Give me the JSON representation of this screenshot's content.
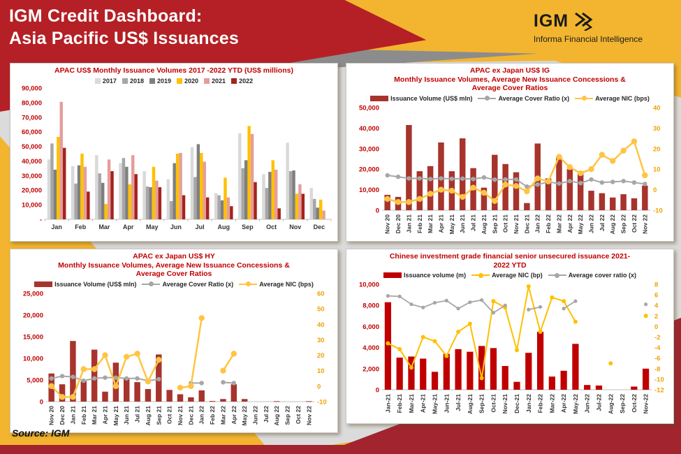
{
  "header": {
    "title_line1": "IGM Credit Dashboard:",
    "title_line2": "Asia Pacific US$ Issuances",
    "logo_text": "IGM",
    "logo_tagline": "Informa Financial Intelligence"
  },
  "source_label": "Source: IGM",
  "colors": {
    "header_red": "#B42025",
    "page_yellow": "#F3B52F",
    "bottom_red": "#A2242F",
    "gray_dark": "#8C8C8C",
    "gray_light": "#DBDBDB",
    "chart_title_red": "#C00000",
    "left_axis_red": "#C00000",
    "right_axis_orange": "#F0A202"
  },
  "chart_data": [
    {
      "id": "apac",
      "type": "bar",
      "title_lines": [
        "APAC US$ Monthly Issuance Volumes 2017 -2022 YTD (US$ millions)"
      ],
      "categories": [
        "Jan",
        "Feb",
        "Mar",
        "Apr",
        "May",
        "Jun",
        "Jul",
        "Aug",
        "Sep",
        "Oct",
        "Nov",
        "Dec"
      ],
      "series": [
        {
          "name": "2017",
          "type": "bar",
          "axis": "left",
          "color": "#D9D9D9",
          "values": [
            41000,
            36500,
            44000,
            38500,
            33000,
            27500,
            49500,
            18000,
            59000,
            31000,
            52500,
            21500
          ]
        },
        {
          "name": "2018",
          "type": "bar",
          "axis": "left",
          "color": "#A6A6A6",
          "values": [
            52000,
            24500,
            31500,
            42000,
            22500,
            12500,
            29000,
            16500,
            35000,
            21500,
            33000,
            14000
          ]
        },
        {
          "name": "2019",
          "type": "bar",
          "axis": "left",
          "color": "#7F7F7F",
          "values": [
            34000,
            37000,
            25000,
            36000,
            22000,
            38500,
            51500,
            13000,
            40500,
            32500,
            33500,
            8000
          ]
        },
        {
          "name": "2020",
          "type": "bar",
          "axis": "left",
          "color": "#FFC000",
          "values": [
            56500,
            45000,
            10500,
            24000,
            36000,
            45000,
            45500,
            28500,
            64000,
            40500,
            17500,
            13500
          ]
        },
        {
          "name": "2021",
          "type": "bar",
          "axis": "left",
          "color": "#E59D9B",
          "values": [
            80500,
            36000,
            41000,
            44000,
            26500,
            45500,
            39500,
            15000,
            58500,
            34000,
            24000,
            6000
          ]
        },
        {
          "name": "2022",
          "type": "bar",
          "axis": "left",
          "color": "#A5231D",
          "values": [
            49000,
            19000,
            33000,
            31000,
            22000,
            16500,
            15000,
            9000,
            25500,
            7500,
            17500,
            null
          ]
        }
      ],
      "left_axis": {
        "min": 0,
        "max": 90000,
        "step": 10000,
        "zero_dash": true
      },
      "right_axis": null,
      "grid": false,
      "legend_position": "top"
    },
    {
      "id": "ig",
      "type": "bar-line",
      "title_lines": [
        "APAC ex Japan US$ IG",
        "Monthly Issuance Volumes, Average New Issuance Concessions &",
        "Average Cover Ratios"
      ],
      "categories": [
        "Nov 20",
        "Dec 20",
        "Jan 21",
        "Feb 21",
        "Mar 21",
        "Apr 21",
        "May 21",
        "Jun 21",
        "Jul 21",
        "Aug 21",
        "Sep 21",
        "Oct 21",
        "Nov 21",
        "Dec 21",
        "Jan 22",
        "Feb 22",
        "Mar 22",
        "Apr 22",
        "May 22",
        "Jun 22",
        "Jul 22",
        "Aug 22",
        "Sep 22",
        "Oct 22",
        "Nov 22"
      ],
      "series": [
        {
          "name": "Issuance Volume (US$ mln)",
          "type": "bar",
          "axis": "left",
          "color": "#A6342D",
          "values": [
            7500,
            6500,
            41500,
            19000,
            21500,
            33000,
            19000,
            35000,
            20500,
            11000,
            27000,
            22500,
            18500,
            3500,
            32500,
            15500,
            26000,
            20000,
            19000,
            9500,
            8300,
            6200,
            7800,
            5800,
            12000
          ]
        },
        {
          "name": "Average Cover Ratio (x)",
          "type": "line",
          "axis": "right",
          "color": "#A6A6A6",
          "lw": 2,
          "r": 3.2,
          "values": [
            7,
            6.3,
            5.5,
            5.5,
            5.2,
            5.5,
            5.3,
            5.4,
            5.2,
            6,
            4.9,
            5,
            5,
            1.5,
            2.5,
            3.8,
            3,
            4.2,
            3.2,
            5,
            3.5,
            3.8,
            4.2,
            3.5,
            2.8
          ]
        },
        {
          "name": "Average NIC (bps)",
          "type": "line",
          "axis": "right",
          "color": "#FFC444",
          "lw": 2.5,
          "r": 4.2,
          "values": [
            -4.5,
            -6,
            -6,
            -4.5,
            -2,
            0,
            -0.5,
            -3.5,
            1,
            -1.5,
            -5.5,
            2.5,
            1.8,
            -0.8,
            5.5,
            4,
            16,
            11,
            8,
            10,
            17,
            14,
            19,
            23.5,
            7
          ]
        }
      ],
      "left_axis": {
        "min": 0,
        "max": 50000,
        "step": 10000,
        "zero_dash": false
      },
      "right_axis": {
        "min": -10,
        "max": 40,
        "step": 10
      },
      "grid": false,
      "legend_position": "top"
    },
    {
      "id": "hy",
      "type": "bar-line",
      "title_lines": [
        "APAC ex Japan US$ HY",
        "Monthly Issuance Volumes, Average New Issuance Concessions &",
        "Average Cover Ratios"
      ],
      "categories": [
        "Nov 20",
        "Dec 20",
        "Jan 21",
        "Feb 21",
        "Mar 21",
        "Apr 21",
        "May 21",
        "Jun 21",
        "Jul 21",
        "Aug 21",
        "Sep 21",
        "Oct 21",
        "Nov 21",
        "Dec 21",
        "Jan 22",
        "Feb 22",
        "Mar 22",
        "Apr 22",
        "May 22",
        "Jun 22",
        "Jul 22",
        "Aug 22",
        "Sep 22",
        "Oct 22",
        "Nov 22"
      ],
      "series": [
        {
          "name": "Issuance Volume (US$ mln)",
          "type": "bar",
          "axis": "left",
          "color": "#A6342D",
          "values": [
            6500,
            4000,
            14000,
            4700,
            12000,
            2300,
            9000,
            5300,
            4500,
            2900,
            10900,
            2700,
            1700,
            1000,
            2600,
            150,
            600,
            4000,
            600,
            null,
            null,
            100,
            null,
            null,
            100
          ]
        },
        {
          "name": "Average Cover Ratio (x)",
          "type": "line",
          "axis": "right",
          "color": "#A6A6A6",
          "lw": 2,
          "r": 3.2,
          "values": [
            5,
            6.5,
            6,
            3.5,
            5,
            5.5,
            5.5,
            5,
            5,
            3.5,
            4.5,
            null,
            null,
            2,
            2,
            null,
            2.5,
            2,
            null,
            null,
            null,
            null,
            null,
            null,
            null
          ]
        },
        {
          "name": "Average NIC (bps)",
          "type": "line",
          "axis": "right",
          "color": "#FFC444",
          "lw": 2.5,
          "r": 4.2,
          "values": [
            0,
            -7,
            -7,
            11,
            11,
            20,
            0,
            19,
            21,
            3,
            17,
            null,
            -1,
            0,
            44,
            null,
            10,
            21,
            null,
            null,
            null,
            null,
            null,
            null,
            null
          ]
        }
      ],
      "left_axis": {
        "min": 0,
        "max": 25000,
        "step": 5000,
        "zero_dash": false
      },
      "right_axis": {
        "min": -10,
        "max": 60,
        "step": 10
      },
      "grid": false,
      "legend_position": "top"
    },
    {
      "id": "cn",
      "type": "bar-line",
      "title_lines": [
        "Chinese investment grade financial senior unsecured issuance 2021-",
        "2022 YTD"
      ],
      "categories": [
        "Jan-21",
        "Feb-21",
        "Mar-21",
        "Apr-21",
        "May-21",
        "Jun-21",
        "Jul-21",
        "Aug-21",
        "Sep-21",
        "Oct-21",
        "Nov-21",
        "Dec-21",
        "Jan-22",
        "Feb-22",
        "Mar-22",
        "Apr-22",
        "May-22",
        "Jun-22",
        "Jul-22",
        "Aug-22",
        "Sep-22",
        "Oct-22",
        "Nov-22"
      ],
      "series": [
        {
          "name": "Issuance volume (m)",
          "type": "bar",
          "axis": "left",
          "color": "#C00000",
          "values": [
            8300,
            3050,
            3150,
            2950,
            1700,
            3400,
            3850,
            3600,
            4150,
            3950,
            2250,
            750,
            3500,
            5500,
            1250,
            1800,
            4350,
            450,
            400,
            null,
            null,
            300,
            2000
          ]
        },
        {
          "name": "Average NIC (bp)",
          "type": "line",
          "axis": "right",
          "color": "#FFC000",
          "lw": 2,
          "r": 3,
          "values": [
            -3.2,
            -4.3,
            -7.8,
            -2,
            -2.8,
            -5.6,
            -1,
            0.5,
            -9.8,
            4.8,
            3.6,
            -4.5,
            7.6,
            -1,
            5.5,
            4.8,
            0.9,
            null,
            null,
            -7,
            null,
            null,
            2
          ]
        },
        {
          "name": "Average cover ratio (x)",
          "type": "line",
          "axis": "right",
          "color": "#A6A6A6",
          "lw": 1.8,
          "r": 2.6,
          "values": [
            5.8,
            5.7,
            4.2,
            3.6,
            4.5,
            4.9,
            3.4,
            4.6,
            5,
            2.6,
            4,
            null,
            3.2,
            3.7,
            null,
            3.4,
            4.8,
            null,
            null,
            null,
            null,
            null,
            4.2
          ]
        }
      ],
      "left_axis": {
        "min": 0,
        "max": 10000,
        "step": 2000,
        "zero_dash": false
      },
      "right_axis": {
        "min": -12,
        "max": 8,
        "step": 2
      },
      "grid": false,
      "legend_position": "top"
    }
  ]
}
